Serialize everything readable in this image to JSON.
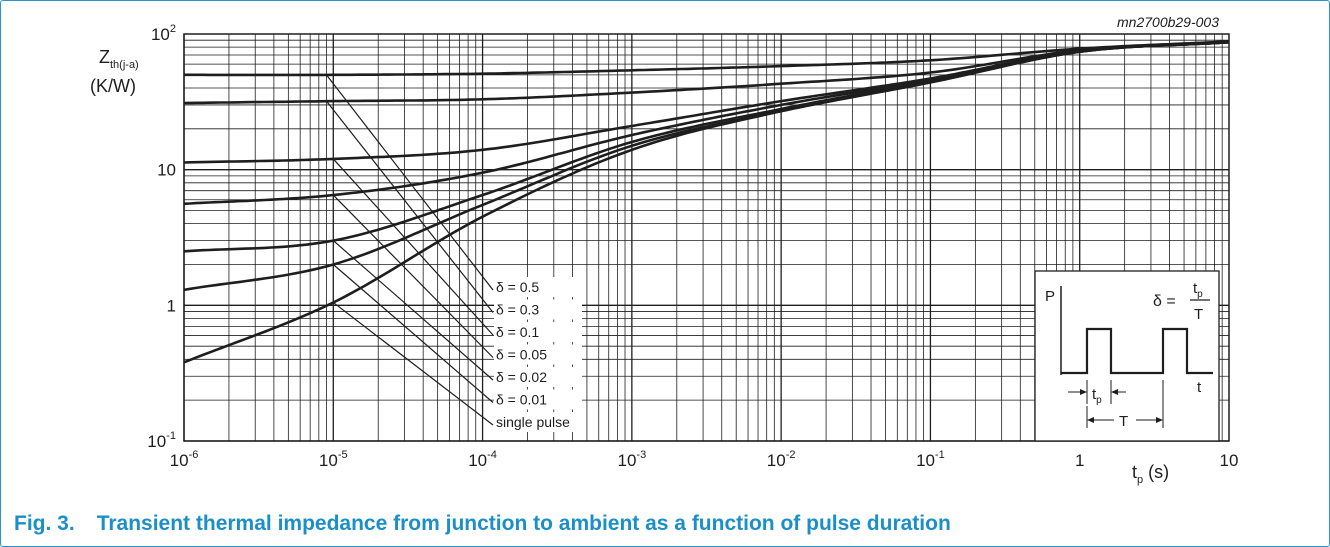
{
  "figure_id": "mn2700b29-003",
  "caption": {
    "number": "Fig. 3.",
    "text": "Transient thermal impedance from junction to ambient as a function of pulse duration"
  },
  "colors": {
    "caption": "#1b8fc9",
    "frame": "#2b93c8",
    "curve": "#1e1e1e",
    "grid": "#1e1e1e"
  },
  "chart_data": {
    "type": "line",
    "x_scale": "log",
    "y_scale": "log",
    "xlim": [
      1e-06,
      10
    ],
    "ylim": [
      0.1,
      100
    ],
    "grid": true,
    "xlabel": {
      "main": "t",
      "sub": "p",
      "unit": " (s)"
    },
    "ylabel": {
      "main": "Z",
      "sub": "th(j-a)",
      "unit": "(K/W)"
    },
    "x_ticks": [
      {
        "value": 1e-06,
        "base": "10",
        "exp": "-6"
      },
      {
        "value": 1e-05,
        "base": "10",
        "exp": "-5"
      },
      {
        "value": 0.0001,
        "base": "10",
        "exp": "-4"
      },
      {
        "value": 0.001,
        "base": "10",
        "exp": "-3"
      },
      {
        "value": 0.01,
        "base": "10",
        "exp": "-2"
      },
      {
        "value": 0.1,
        "base": "10",
        "exp": "-1"
      },
      {
        "value": 1,
        "base": "1",
        "exp": ""
      },
      {
        "value": 10,
        "base": "10",
        "exp": ""
      }
    ],
    "y_ticks": [
      {
        "value": 0.1,
        "base": "10",
        "exp": "-1"
      },
      {
        "value": 1,
        "base": "1",
        "exp": ""
      },
      {
        "value": 10,
        "base": "10",
        "exp": ""
      },
      {
        "value": 100,
        "base": "10",
        "exp": "2"
      }
    ],
    "x": [
      1e-06,
      1e-05,
      0.0001,
      0.001,
      0.01,
      0.1,
      1,
      10
    ],
    "series": [
      {
        "name": "δ = 0.5",
        "values": [
          50,
          50,
          51,
          54,
          58,
          64,
          78,
          88
        ]
      },
      {
        "name": "δ = 0.3",
        "values": [
          31,
          32,
          33,
          37,
          43,
          52,
          76,
          88
        ]
      },
      {
        "name": "δ = 0.1",
        "values": [
          11.3,
          12,
          14,
          21,
          32,
          47,
          75,
          87
        ]
      },
      {
        "name": "δ = 0.05",
        "values": [
          5.6,
          6.5,
          9.5,
          18,
          30,
          46,
          75,
          87
        ]
      },
      {
        "name": "δ = 0.02",
        "values": [
          2.5,
          3,
          6.5,
          16,
          28,
          45,
          74,
          87
        ]
      },
      {
        "name": "δ = 0.01",
        "values": [
          1.3,
          2,
          5.5,
          15,
          27,
          44,
          74,
          87
        ]
      },
      {
        "name": "single pulse",
        "values": [
          0.38,
          1.05,
          4.5,
          14,
          27,
          44,
          74,
          87
        ]
      }
    ],
    "annotations": [
      {
        "label": "δ = 0.5",
        "from_x": 9e-06,
        "from_y": 50
      },
      {
        "label": "δ = 0.3",
        "from_x": 9e-06,
        "from_y": 32
      },
      {
        "label": "δ = 0.1",
        "from_x": 1e-05,
        "from_y": 12
      },
      {
        "label": "δ = 0.05",
        "from_x": 1e-05,
        "from_y": 6.5
      },
      {
        "label": "δ = 0.02",
        "from_x": 1e-05,
        "from_y": 3
      },
      {
        "label": "δ = 0.01",
        "from_x": 1e-05,
        "from_y": 2
      },
      {
        "label": "single pulse",
        "from_x": 1e-05,
        "from_y": 1.05
      }
    ],
    "inset": {
      "p_label": "P",
      "formula_lhs": "δ =",
      "numerator_main": "t",
      "numerator_sub": "p",
      "denominator": "T",
      "t_axis_label": "t",
      "tp_main": "t",
      "tp_sub": "p",
      "period_label": "T"
    }
  }
}
